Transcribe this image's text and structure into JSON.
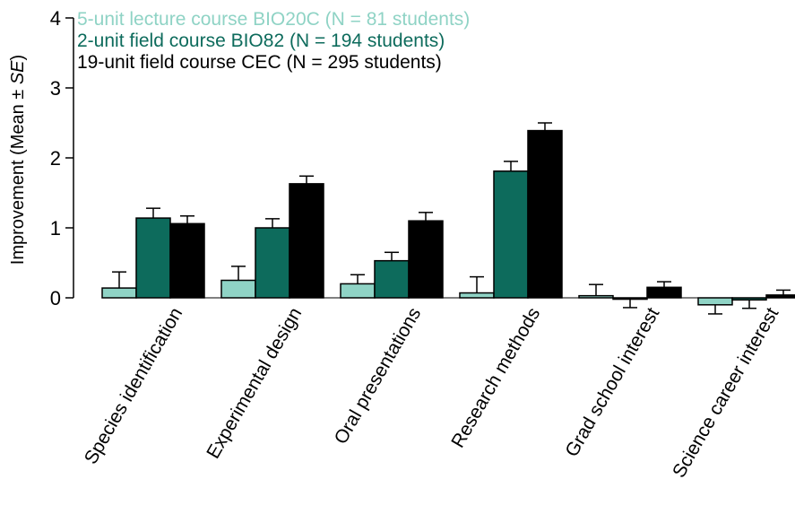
{
  "chart_data": {
    "type": "bar",
    "categories": [
      "Species identification",
      "Experimental design",
      "Oral presentations",
      "Research methods",
      "Grad school interest",
      "Science career interest"
    ],
    "series": [
      {
        "name": "5-unit lecture course BIO20C (N = 81 students)",
        "color": "#8fd3c5",
        "values": [
          0.14,
          0.25,
          0.2,
          0.07,
          0.03,
          -0.1
        ],
        "se": [
          0.23,
          0.2,
          0.13,
          0.23,
          0.16,
          0.13
        ]
      },
      {
        "name": "2-unit field course BIO82 (N = 194 students)",
        "color": "#0d6b5c",
        "values": [
          1.14,
          1.0,
          0.53,
          1.81,
          -0.02,
          -0.03
        ],
        "se": [
          0.14,
          0.13,
          0.12,
          0.14,
          0.12,
          0.12
        ]
      },
      {
        "name": "19-unit field course CEC (N = 295 students)",
        "color": "#000000",
        "values": [
          1.06,
          1.63,
          1.1,
          2.39,
          0.15,
          0.04
        ],
        "se": [
          0.11,
          0.11,
          0.12,
          0.11,
          0.08,
          0.07
        ]
      }
    ],
    "ylabel": "Improvement (Mean ± SE)",
    "ylabel_parts": {
      "main": "Improvement (Mean ± ",
      "italic": "SE",
      "end": ")"
    },
    "yticks": [
      "0",
      "1",
      "2",
      "3",
      "4"
    ],
    "ylim": [
      0,
      4
    ],
    "grid": false,
    "legend_position": "top-left",
    "error_bars": "mean ± SE"
  }
}
